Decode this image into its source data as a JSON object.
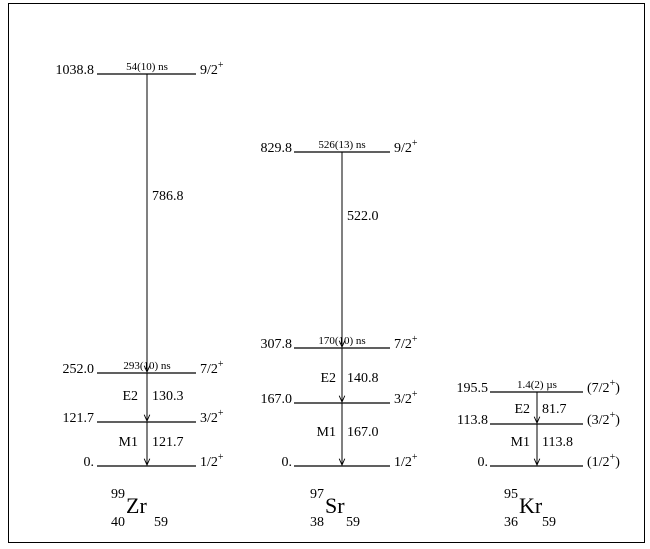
{
  "nuclei": [
    {
      "id": "zr",
      "mass": "99",
      "atomic": "40",
      "symbol": "Zr",
      "neutrons": "59",
      "levels": [
        {
          "energy": "1038.8",
          "spin": "9/2",
          "parity": "+",
          "halflife": "54(10) ns"
        },
        {
          "energy": "252.0",
          "spin": "7/2",
          "parity": "+",
          "halflife": "293(10) ns"
        },
        {
          "energy": "121.7",
          "spin": "3/2",
          "parity": "+",
          "halflife": ""
        },
        {
          "energy": "0.",
          "spin": "1/2",
          "parity": "+",
          "halflife": ""
        }
      ],
      "transitions": [
        {
          "energy": "786.8",
          "mult": ""
        },
        {
          "energy": "130.3",
          "mult": "E2"
        },
        {
          "energy": "121.7",
          "mult": "M1"
        }
      ]
    },
    {
      "id": "sr",
      "mass": "97",
      "atomic": "38",
      "symbol": "Sr",
      "neutrons": "59",
      "levels": [
        {
          "energy": "829.8",
          "spin": "9/2",
          "parity": "+",
          "halflife": "526(13) ns"
        },
        {
          "energy": "307.8",
          "spin": "7/2",
          "parity": "+",
          "halflife": "170(10) ns"
        },
        {
          "energy": "167.0",
          "spin": "3/2",
          "parity": "+",
          "halflife": ""
        },
        {
          "energy": "0.",
          "spin": "1/2",
          "parity": "+",
          "halflife": ""
        }
      ],
      "transitions": [
        {
          "energy": "522.0",
          "mult": ""
        },
        {
          "energy": "140.8",
          "mult": "E2"
        },
        {
          "energy": "167.0",
          "mult": "M1"
        }
      ]
    },
    {
      "id": "kr",
      "mass": "95",
      "atomic": "36",
      "symbol": "Kr",
      "neutrons": "59",
      "levels": [
        {
          "energy": "195.5",
          "spin": "(7/2",
          "parity": "+",
          "close": ")",
          "halflife": "1.4(2) µs"
        },
        {
          "energy": "113.8",
          "spin": "(3/2",
          "parity": "+",
          "close": ")",
          "halflife": ""
        },
        {
          "energy": "0.",
          "spin": "(1/2",
          "parity": "+",
          "close": ")",
          "halflife": ""
        }
      ],
      "transitions": [
        {
          "energy": "81.7",
          "mult": "E2"
        },
        {
          "energy": "113.8",
          "mult": "M1"
        }
      ]
    }
  ]
}
